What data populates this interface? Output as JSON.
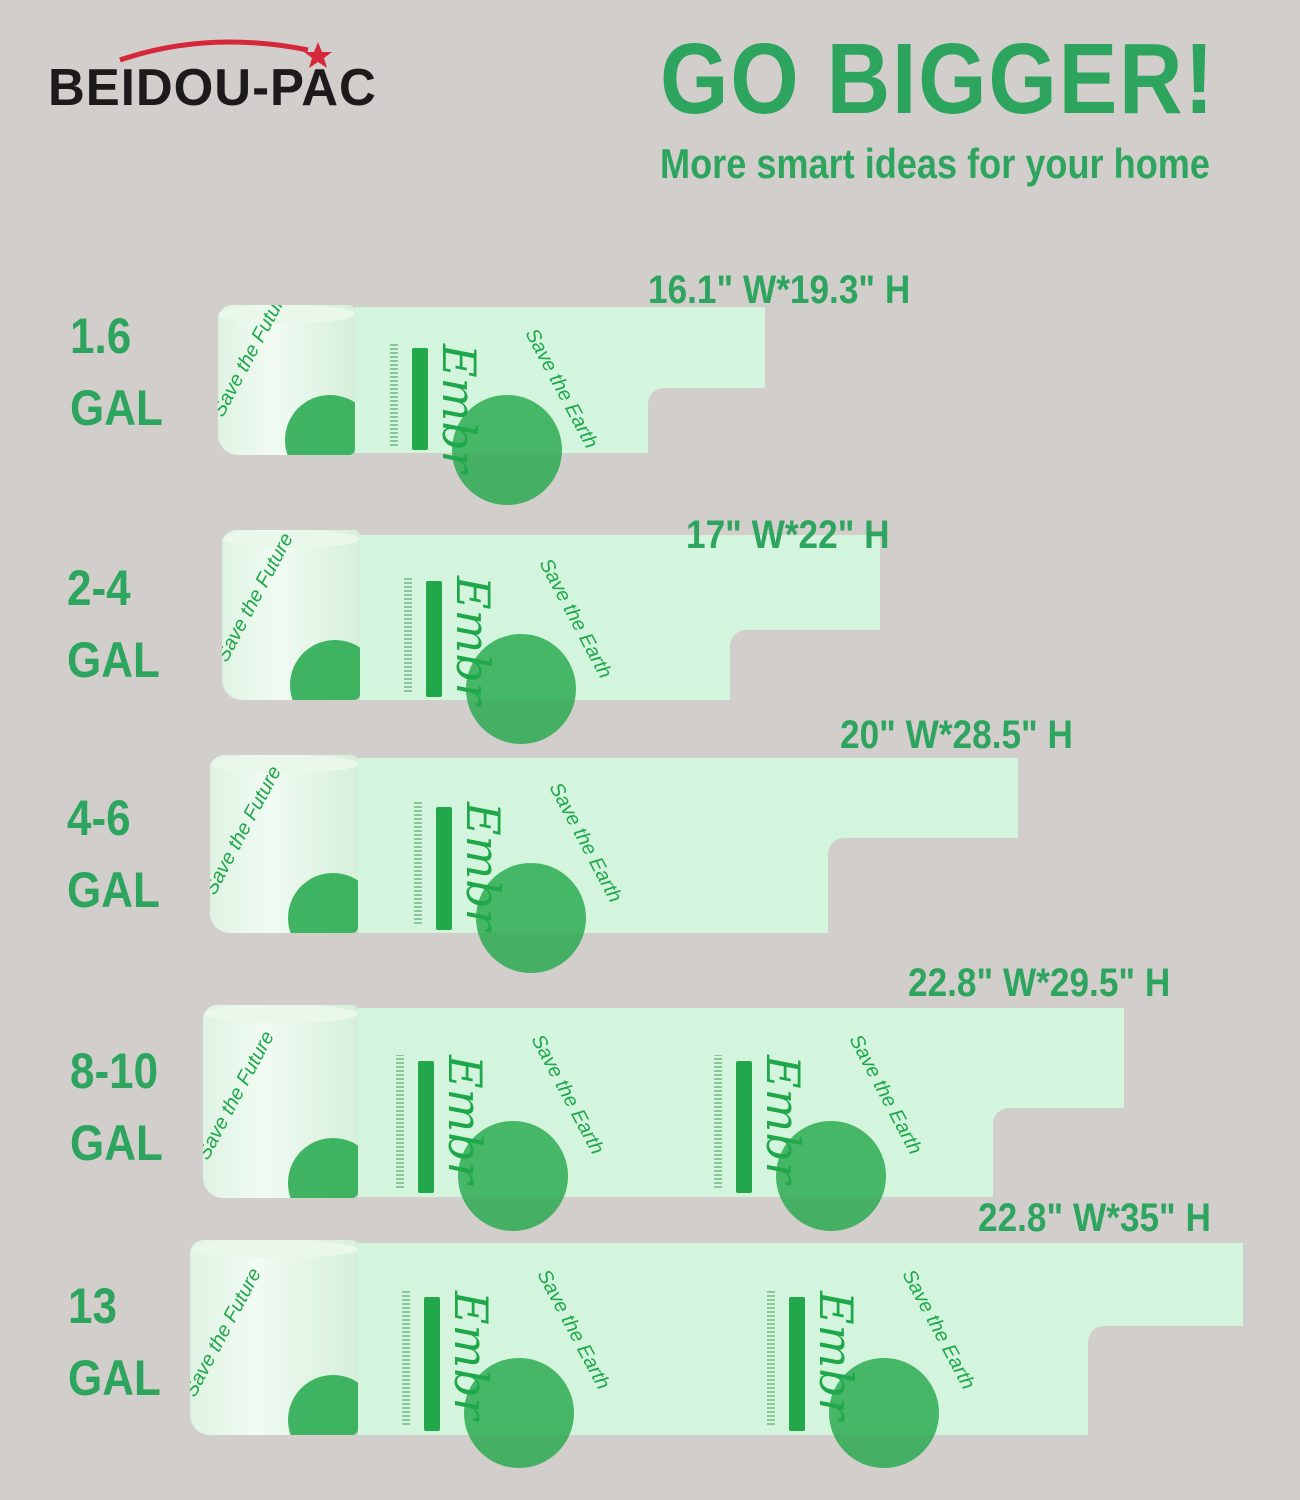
{
  "brand": {
    "logo_text": "BEIDOU-PAC",
    "logo_accent_color": "#d6283a"
  },
  "header": {
    "title": "GO BIGGER!",
    "subtitle": "More smart ideas for your home"
  },
  "colors": {
    "accent": "#2ea55f",
    "bag": "#d3f4dd",
    "background": "#d2cecc"
  },
  "bag_print": {
    "roll_text": "Save the Future",
    "bag_text": "Save the Earth",
    "brand_text": "Embr"
  },
  "sizes": [
    {
      "capacity": "1.6",
      "unit": "GAL",
      "dimensions": "16.1\" W*19.3\" H"
    },
    {
      "capacity": "2-4",
      "unit": "GAL",
      "dimensions": "17\" W*22\" H"
    },
    {
      "capacity": "4-6",
      "unit": "GAL",
      "dimensions": "20\" W*28.5\" H"
    },
    {
      "capacity": "8-10",
      "unit": "GAL",
      "dimensions": "22.8\" W*29.5\" H"
    },
    {
      "capacity": "13",
      "unit": "GAL",
      "dimensions": "22.8\" W*35\" H"
    }
  ]
}
